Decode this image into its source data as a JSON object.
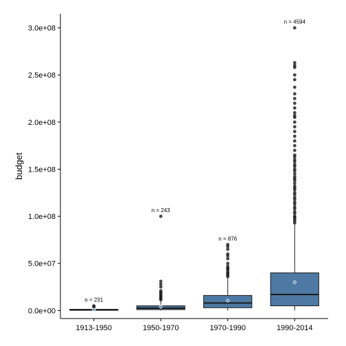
{
  "chart_data": {
    "type": "boxplot",
    "ylabel": "budget",
    "xlabel": "",
    "ylim": [
      -8500000,
      315000000
    ],
    "y_ticks": [
      0,
      50000000,
      100000000,
      150000000,
      200000000,
      250000000,
      300000000
    ],
    "y_tick_labels": [
      "0.0e+00",
      "5.0e+07",
      "1.0e+08",
      "1.5e+08",
      "2.0e+08",
      "2.5e+08",
      "3.0e+08"
    ],
    "categories": [
      "1913-1950",
      "1950-1970",
      "1970-1990",
      "1990-2014"
    ],
    "grid": false,
    "legend": "none",
    "colors": {
      "box_fill": "#4d79a4",
      "box_line": "#1a1a1a",
      "outlier": "#1a1a1a"
    },
    "boxes": [
      {
        "category": "1913-1950",
        "n_label": "n = 231",
        "q1": 200000,
        "median": 700000,
        "q3": 1300000,
        "whisker_low": 0,
        "whisker_high": 2600000,
        "mean": 1000000,
        "outliers": [
          3200000,
          4000000,
          5000000
        ]
      },
      {
        "category": "1950-1970",
        "n_label": "n = 243",
        "q1": 1000000,
        "median": 2500000,
        "q3": 5000000,
        "whisker_low": 0,
        "whisker_high": 10500000,
        "mean": 4000000,
        "outliers": [
          11500000,
          12500000,
          13500000,
          15000000,
          16500000,
          18000000,
          19500000,
          21000000,
          25000000,
          28000000,
          31000000,
          100000000
        ]
      },
      {
        "category": "1970-1990",
        "n_label": "n = 876",
        "q1": 3000000,
        "median": 8000000,
        "q3": 16000000,
        "whisker_low": 0,
        "whisker_high": 35000000,
        "mean": 10500000,
        "outliers": [
          36000000,
          37500000,
          39000000,
          40000000,
          42000000,
          44000000,
          45000000,
          47000000,
          50000000,
          55000000,
          58000000,
          60000000,
          65000000,
          68000000,
          70000000
        ]
      },
      {
        "category": "1990-2014",
        "n_label": "n = 4594",
        "q1": 5000000,
        "median": 17000000,
        "q3": 40000000,
        "whisker_low": 0,
        "whisker_high": 92000000,
        "mean": 30000000,
        "outliers": [
          93000000,
          95000000,
          97000000,
          99000000,
          100000000,
          103000000,
          105000000,
          108000000,
          110000000,
          113000000,
          115000000,
          118000000,
          120000000,
          123000000,
          125000000,
          128000000,
          130000000,
          132000000,
          135000000,
          138000000,
          140000000,
          142000000,
          145000000,
          148000000,
          150000000,
          153000000,
          155000000,
          158000000,
          160000000,
          163000000,
          165000000,
          170000000,
          175000000,
          180000000,
          185000000,
          190000000,
          195000000,
          200000000,
          205000000,
          207000000,
          210000000,
          215000000,
          220000000,
          225000000,
          230000000,
          237000000,
          245000000,
          250000000,
          258000000,
          260000000,
          263000000,
          300000000
        ]
      }
    ]
  }
}
